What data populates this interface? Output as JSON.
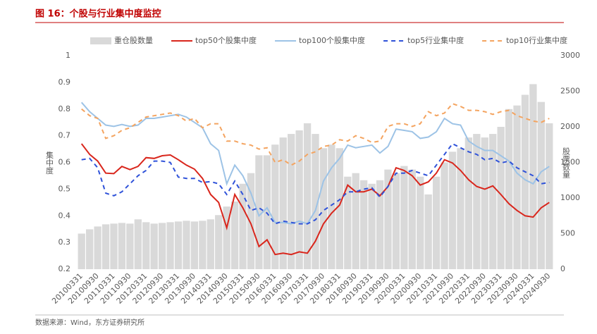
{
  "chart_data": {
    "type": "bar-line",
    "title": "图 16：个股与行业集中度监控",
    "source": "数据来源：Wind，东方证券研究所",
    "ylabel": "集中度",
    "y2label": "股票数量",
    "categories": [
      "20100331",
      null,
      "20100930",
      null,
      "20110331",
      null,
      "20110930",
      null,
      "20120331",
      null,
      "20120930",
      null,
      "20130331",
      null,
      "20130930",
      null,
      "20140331",
      null,
      "20140930",
      null,
      "20150331",
      null,
      "20150930",
      null,
      "20160331",
      null,
      "20160930",
      null,
      "20170331",
      null,
      "20170930",
      null,
      "20180331",
      null,
      "20180930",
      null,
      "20190331",
      null,
      "20190930",
      null,
      "20200331",
      null,
      "20200930",
      null,
      "20210331",
      null,
      "20210930",
      null,
      "20220331",
      null,
      "20220930",
      null,
      "20230331",
      null,
      "20230930",
      null,
      "20240331",
      null,
      "20240930"
    ],
    "ylim": [
      0.2,
      1
    ],
    "yticks": [
      0.2,
      0.3,
      0.4,
      0.5,
      0.6,
      0.7,
      0.8,
      0.9,
      1
    ],
    "y2lim": [
      0,
      3000
    ],
    "y2ticks": [
      0,
      500,
      1000,
      1500,
      2000,
      2500,
      3000
    ],
    "series": [
      {
        "name": "重仓股数量",
        "type": "bar",
        "axis": "y2",
        "color": "#d9d9d9",
        "values": [
          500,
          560,
          600,
          630,
          640,
          650,
          640,
          700,
          660,
          640,
          650,
          660,
          670,
          680,
          670,
          680,
          700,
          760,
          880,
          950,
          1200,
          1350,
          1600,
          1600,
          1750,
          1850,
          1900,
          1950,
          2050,
          1900,
          1700,
          1750,
          1700,
          1300,
          1350,
          1250,
          1200,
          1250,
          1400,
          1350,
          1450,
          1400,
          1300,
          1050,
          1300,
          1500,
          1650,
          1700,
          1850,
          1900,
          1850,
          1900,
          2000,
          2250,
          2300,
          2450,
          2600,
          2350,
          2050
        ]
      },
      {
        "name": "top50个股集中度",
        "type": "line",
        "color": "#d9261c",
        "dash": "solid",
        "values": [
          0.67,
          0.63,
          0.605,
          0.56,
          0.558,
          0.585,
          0.573,
          0.585,
          0.618,
          0.615,
          0.625,
          0.628,
          0.61,
          0.59,
          0.575,
          0.54,
          0.48,
          0.45,
          0.355,
          0.48,
          0.43,
          0.37,
          0.285,
          0.31,
          0.255,
          0.26,
          0.255,
          0.265,
          0.26,
          0.305,
          0.37,
          0.41,
          0.44,
          0.515,
          0.49,
          0.49,
          0.5,
          0.475,
          0.51,
          0.58,
          0.57,
          0.55,
          0.515,
          0.527,
          0.56,
          0.61,
          0.598,
          0.57,
          0.535,
          0.51,
          0.5,
          0.512,
          0.48,
          0.445,
          0.42,
          0.4,
          0.395,
          0.43,
          0.45
        ]
      },
      {
        "name": "top100个股集中度",
        "type": "line",
        "color": "#9dc3e6",
        "dash": "solid",
        "values": [
          0.825,
          0.79,
          0.765,
          0.74,
          0.735,
          0.742,
          0.735,
          0.74,
          0.765,
          0.765,
          0.77,
          0.775,
          0.78,
          0.77,
          0.75,
          0.73,
          0.67,
          0.645,
          0.52,
          0.59,
          0.55,
          0.485,
          0.4,
          0.43,
          0.375,
          0.375,
          0.37,
          0.38,
          0.37,
          0.42,
          0.53,
          0.58,
          0.615,
          0.665,
          0.655,
          0.66,
          0.665,
          0.635,
          0.66,
          0.725,
          0.72,
          0.715,
          0.69,
          0.695,
          0.715,
          0.765,
          0.745,
          0.74,
          0.68,
          0.66,
          0.645,
          0.645,
          0.625,
          0.605,
          0.56,
          0.535,
          0.52,
          0.565,
          0.585
        ]
      },
      {
        "name": "top5行业集中度",
        "type": "line",
        "color": "#2f52d9",
        "dash": "dashed",
        "values": [
          0.61,
          0.615,
          0.58,
          0.485,
          0.475,
          0.49,
          0.52,
          0.55,
          0.57,
          0.605,
          0.605,
          0.6,
          0.545,
          0.54,
          0.54,
          0.525,
          0.528,
          0.52,
          0.48,
          0.53,
          0.48,
          0.42,
          0.43,
          0.41,
          0.37,
          0.38,
          0.375,
          0.37,
          0.37,
          0.385,
          0.42,
          0.44,
          0.46,
          0.49,
          0.49,
          0.5,
          0.505,
          0.47,
          0.51,
          0.56,
          0.56,
          0.57,
          0.56,
          0.55,
          0.59,
          0.63,
          0.67,
          0.655,
          0.64,
          0.63,
          0.61,
          0.615,
          0.598,
          0.605,
          0.58,
          0.565,
          0.55,
          0.52,
          0.525
        ]
      },
      {
        "name": "top10行业集中度",
        "type": "line",
        "color": "#f4a460",
        "dash": "dashed",
        "values": [
          0.8,
          0.775,
          0.765,
          0.69,
          0.7,
          0.72,
          0.73,
          0.75,
          0.77,
          0.775,
          0.78,
          0.785,
          0.775,
          0.755,
          0.765,
          0.73,
          0.745,
          0.745,
          0.68,
          0.68,
          0.67,
          0.665,
          0.65,
          0.655,
          0.6,
          0.61,
          0.59,
          0.605,
          0.63,
          0.64,
          0.66,
          0.665,
          0.685,
          0.68,
          0.7,
          0.69,
          0.675,
          0.68,
          0.735,
          0.745,
          0.745,
          0.735,
          0.745,
          0.79,
          0.775,
          0.785,
          0.82,
          0.81,
          0.795,
          0.795,
          0.79,
          0.78,
          0.79,
          0.795,
          0.775,
          0.765,
          0.755,
          0.75,
          0.765
        ]
      }
    ]
  }
}
